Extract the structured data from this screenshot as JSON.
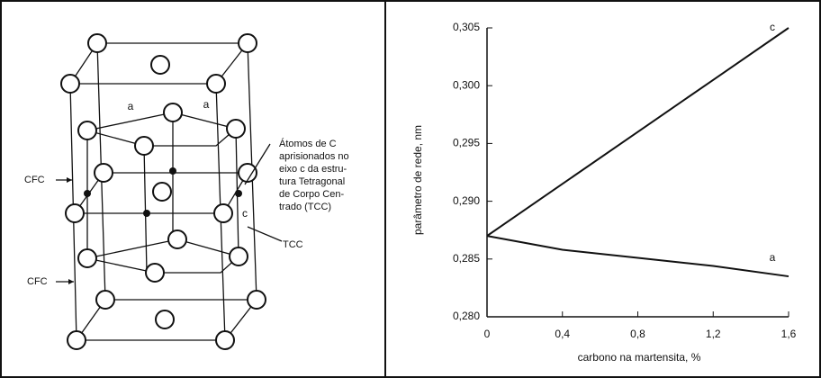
{
  "diagram": {
    "labels": {
      "a_left": "a",
      "a_right": "a",
      "c": "c",
      "cfc_top": "CFC",
      "cfc_bottom": "CFC",
      "tcc": "TCC"
    },
    "note": [
      "Átomos de C",
      "aprisionados no",
      "eixo c da estru-",
      "tura Tetragonal",
      "de Corpo Cen-",
      "trado (TCC)"
    ]
  },
  "chart_data": {
    "type": "line",
    "xlabel": "carbono na martensita, %",
    "ylabel": "parâmetro de rede, nm",
    "x": [
      0,
      0.4,
      0.8,
      1.2,
      1.6
    ],
    "series": [
      {
        "name": "c",
        "color": "#111111",
        "values": [
          0.287,
          0.2915,
          0.296,
          0.3005,
          0.305
        ]
      },
      {
        "name": "a",
        "color": "#111111",
        "values": [
          0.287,
          0.2858,
          0.2851,
          0.2844,
          0.2835
        ]
      }
    ],
    "xlim": [
      0,
      1.6
    ],
    "ylim": [
      0.28,
      0.305
    ],
    "xticks": [
      0,
      {
        "value": 0.4,
        "label": "0,4"
      },
      {
        "value": 0.8,
        "label": "0,8"
      },
      {
        "value": 1.2,
        "label": "1,2"
      },
      {
        "value": 1.6,
        "label": "1,6"
      }
    ],
    "yticks": [
      {
        "value": 0.28,
        "label": "0,280"
      },
      {
        "value": 0.285,
        "label": "0,285"
      },
      {
        "value": 0.29,
        "label": "0,290"
      },
      {
        "value": 0.295,
        "label": "0,295"
      },
      {
        "value": 0.3,
        "label": "0,300"
      },
      {
        "value": 0.305,
        "label": "0,305"
      }
    ],
    "grid": false
  }
}
